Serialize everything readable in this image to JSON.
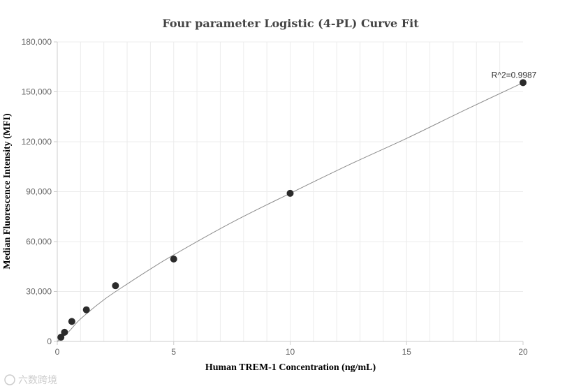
{
  "chart_data": {
    "type": "scatter",
    "title": "Four parameter Logistic (4-PL) Curve Fit",
    "xlabel": "Human TREM-1 Concentration (ng/mL)",
    "ylabel": "Median Fluorescence Intensity (MFI)",
    "xlim": [
      0,
      20
    ],
    "ylim": [
      0,
      180000
    ],
    "x_ticks": [
      0,
      5,
      10,
      15,
      20
    ],
    "x_tick_labels": [
      "0",
      "5",
      "10",
      "15",
      "20"
    ],
    "y_ticks": [
      0,
      30000,
      60000,
      90000,
      120000,
      150000,
      180000
    ],
    "y_tick_labels": [
      "0",
      "30,000",
      "60,000",
      "90,000",
      "120,000",
      "150,000",
      "180,000"
    ],
    "grid": true,
    "points": [
      {
        "x": 0.156,
        "y": 2500
      },
      {
        "x": 0.3125,
        "y": 5500
      },
      {
        "x": 0.625,
        "y": 12000
      },
      {
        "x": 1.25,
        "y": 19000
      },
      {
        "x": 2.5,
        "y": 33500
      },
      {
        "x": 5,
        "y": 49500
      },
      {
        "x": 10,
        "y": 89000
      },
      {
        "x": 20,
        "y": 155500
      }
    ],
    "fit_curve": [
      {
        "x": 0,
        "y": 0
      },
      {
        "x": 0.5,
        "y": 6000
      },
      {
        "x": 1,
        "y": 13500
      },
      {
        "x": 2,
        "y": 25000
      },
      {
        "x": 3,
        "y": 34500
      },
      {
        "x": 4,
        "y": 43500
      },
      {
        "x": 5,
        "y": 52000
      },
      {
        "x": 7.5,
        "y": 71500
      },
      {
        "x": 10,
        "y": 89000
      },
      {
        "x": 12.5,
        "y": 106000
      },
      {
        "x": 15,
        "y": 122000
      },
      {
        "x": 17.5,
        "y": 139000
      },
      {
        "x": 20,
        "y": 155500
      }
    ],
    "annotation": "R^2=0.9987",
    "colors": {
      "points": "#2b2b2b",
      "curve": "#8c8c8c",
      "grid": "#ececec",
      "axis": "#cccccc"
    }
  },
  "watermark": "六数跨境"
}
